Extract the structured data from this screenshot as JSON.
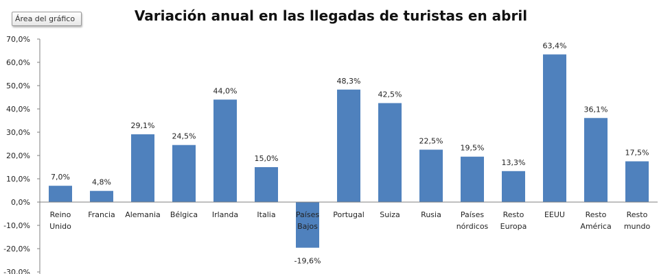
{
  "ui": {
    "tooltip_text": "Área del gráfico"
  },
  "chart_data": {
    "type": "bar",
    "title": "Variación anual en las llegadas de turistas en abril",
    "xlabel": "",
    "ylabel": "",
    "ylim": [
      -30,
      70
    ],
    "yticks": [
      -30,
      -20,
      -10,
      0,
      10,
      20,
      30,
      40,
      50,
      60,
      70
    ],
    "ytick_labels": [
      "-30,0%",
      "-20,0%",
      "-10,0%",
      "0,0%",
      "10,0%",
      "20,0%",
      "30,0%",
      "40,0%",
      "50,0%",
      "60,0%",
      "70,0%"
    ],
    "categories": [
      [
        "Reino",
        "Unido"
      ],
      [
        "Francia"
      ],
      [
        "Alemania"
      ],
      [
        "Bélgica"
      ],
      [
        "Irlanda"
      ],
      [
        "Italia"
      ],
      [
        "Países",
        "Bajos"
      ],
      [
        "Portugal"
      ],
      [
        "Suiza"
      ],
      [
        "Rusia"
      ],
      [
        "Países",
        "nórdicos"
      ],
      [
        "Resto",
        "Europa"
      ],
      [
        "EEUU"
      ],
      [
        "Resto",
        "América"
      ],
      [
        "Resto",
        "mundo"
      ]
    ],
    "values": [
      7.0,
      4.8,
      29.1,
      24.5,
      44.0,
      15.0,
      -19.6,
      48.3,
      42.5,
      22.5,
      19.5,
      13.3,
      63.4,
      36.1,
      17.5
    ],
    "data_labels": [
      "7,0%",
      "4,8%",
      "29,1%",
      "24,5%",
      "44,0%",
      "15,0%",
      "-19,6%",
      "48,3%",
      "42,5%",
      "22,5%",
      "19,5%",
      "13,3%",
      "63,4%",
      "36,1%",
      "17,5%"
    ],
    "bar_color": "#4f81bd",
    "axis_color": "#7f7f7f",
    "grid": false,
    "legend": "none"
  }
}
